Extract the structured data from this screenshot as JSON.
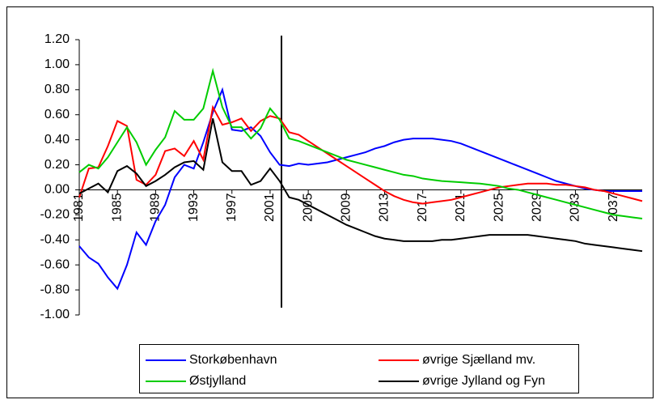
{
  "chart_data": {
    "type": "line",
    "x": [
      1981,
      1982,
      1983,
      1984,
      1985,
      1986,
      1987,
      1988,
      1989,
      1990,
      1991,
      1992,
      1993,
      1994,
      1995,
      1996,
      1997,
      1998,
      1999,
      2000,
      2001,
      2002,
      2003,
      2004,
      2005,
      2006,
      2007,
      2008,
      2009,
      2010,
      2011,
      2012,
      2013,
      2014,
      2015,
      2016,
      2017,
      2018,
      2019,
      2020,
      2021,
      2022,
      2023,
      2024,
      2025,
      2026,
      2027,
      2028,
      2029,
      2030,
      2031,
      2032,
      2033,
      2034,
      2035,
      2036,
      2037,
      2038,
      2039,
      2040
    ],
    "xlim": [
      1981,
      2040
    ],
    "xticks": [
      1981,
      1985,
      1989,
      1993,
      1997,
      2001,
      2005,
      2009,
      2013,
      2017,
      2021,
      2025,
      2029,
      2033,
      2037
    ],
    "ylim": [
      -1,
      1.2
    ],
    "yticks": [
      {
        "value": 1.2,
        "label": "1.20"
      },
      {
        "value": 1,
        "label": "1.00"
      },
      {
        "value": 0.8,
        "label": "0.80"
      },
      {
        "value": 0.6,
        "label": "0.60"
      },
      {
        "value": 0.4,
        "label": "0.40"
      },
      {
        "value": 0.2,
        "label": "0.20"
      },
      {
        "value": 0,
        "label": "0.00"
      },
      {
        "value": -0.2,
        "label": "-0.20"
      },
      {
        "value": -0.4,
        "label": "-0.40"
      },
      {
        "value": -0.6,
        "label": "-0.60"
      },
      {
        "value": -0.8,
        "label": "-0.80"
      },
      {
        "value": -1,
        "label": "-1.00"
      }
    ],
    "grid": false,
    "legend": "bottom",
    "series": [
      {
        "name": "Storkøbenhavn",
        "color": "#0000ff",
        "values": [
          -0.45,
          -0.54,
          -0.59,
          -0.7,
          -0.79,
          -0.6,
          -0.34,
          -0.44,
          -0.25,
          -0.12,
          0.1,
          0.2,
          0.17,
          0.38,
          0.62,
          0.8,
          0.48,
          0.47,
          0.5,
          0.43,
          0.3,
          0.2,
          0.19,
          0.21,
          0.2,
          0.21,
          0.22,
          0.24,
          0.26,
          0.28,
          0.3,
          0.33,
          0.35,
          0.38,
          0.4,
          0.41,
          0.41,
          0.41,
          0.4,
          0.39,
          0.37,
          0.34,
          0.31,
          0.28,
          0.25,
          0.22,
          0.19,
          0.16,
          0.13,
          0.1,
          0.07,
          0.05,
          0.03,
          0.01,
          0.0,
          -0.01,
          -0.01,
          -0.01,
          -0.01,
          -0.01
        ]
      },
      {
        "name": "øvrige Sjælland mv.",
        "color": "#ff0000",
        "values": [
          -0.06,
          0.17,
          0.18,
          0.35,
          0.55,
          0.51,
          0.08,
          0.04,
          0.12,
          0.31,
          0.33,
          0.27,
          0.39,
          0.24,
          0.66,
          0.52,
          0.54,
          0.57,
          0.47,
          0.55,
          0.59,
          0.57,
          0.46,
          0.44,
          0.39,
          0.34,
          0.29,
          0.24,
          0.19,
          0.14,
          0.09,
          0.04,
          -0.01,
          -0.05,
          -0.08,
          -0.1,
          -0.11,
          -0.1,
          -0.09,
          -0.08,
          -0.06,
          -0.04,
          -0.02,
          0.0,
          0.02,
          0.03,
          0.04,
          0.05,
          0.05,
          0.05,
          0.04,
          0.04,
          0.03,
          0.02,
          0.0,
          -0.01,
          -0.03,
          -0.05,
          -0.07,
          -0.09
        ]
      },
      {
        "name": "Østjylland",
        "color": "#00cc00",
        "values": [
          0.14,
          0.2,
          0.17,
          0.26,
          0.38,
          0.5,
          0.38,
          0.2,
          0.32,
          0.42,
          0.63,
          0.56,
          0.56,
          0.65,
          0.95,
          0.66,
          0.5,
          0.5,
          0.41,
          0.49,
          0.65,
          0.56,
          0.41,
          0.39,
          0.36,
          0.33,
          0.3,
          0.27,
          0.24,
          0.22,
          0.2,
          0.18,
          0.16,
          0.14,
          0.12,
          0.11,
          0.09,
          0.08,
          0.07,
          0.065,
          0.06,
          0.055,
          0.05,
          0.04,
          0.03,
          0.01,
          0.0,
          -0.02,
          -0.04,
          -0.06,
          -0.08,
          -0.1,
          -0.12,
          -0.14,
          -0.16,
          -0.18,
          -0.2,
          -0.21,
          -0.22,
          -0.23
        ]
      },
      {
        "name": "øvrige Jylland og Fyn",
        "color": "#000000",
        "values": [
          -0.03,
          0.01,
          0.05,
          -0.02,
          0.15,
          0.19,
          0.13,
          0.03,
          0.07,
          0.12,
          0.18,
          0.22,
          0.23,
          0.16,
          0.57,
          0.22,
          0.15,
          0.15,
          0.04,
          0.07,
          0.17,
          0.07,
          -0.06,
          -0.08,
          -0.12,
          -0.16,
          -0.2,
          -0.24,
          -0.28,
          -0.31,
          -0.34,
          -0.37,
          -0.39,
          -0.4,
          -0.41,
          -0.41,
          -0.41,
          -0.41,
          -0.4,
          -0.4,
          -0.39,
          -0.38,
          -0.37,
          -0.36,
          -0.36,
          -0.36,
          -0.36,
          -0.36,
          -0.37,
          -0.38,
          -0.39,
          -0.4,
          -0.41,
          -0.43,
          -0.44,
          -0.45,
          -0.46,
          -0.47,
          -0.48,
          -0.49
        ]
      }
    ]
  }
}
